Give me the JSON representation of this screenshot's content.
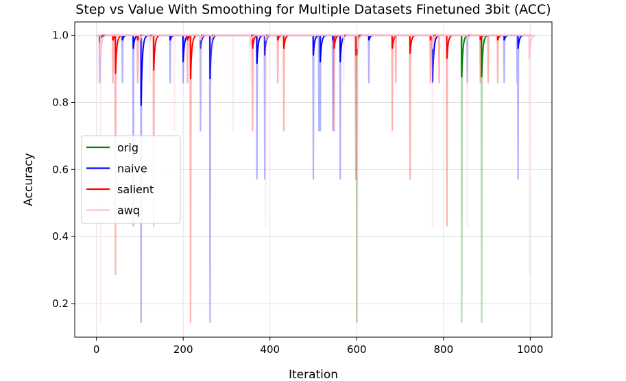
{
  "chart_data": {
    "type": "line",
    "title": "Step vs Value With Smoothing for Multiple Datasets Finetuned 3bit (ACC)",
    "xlabel": "Iteration",
    "ylabel": "Accuracy",
    "xlim": [
      -50,
      1050
    ],
    "ylim": [
      0.1,
      1.04
    ],
    "xticks": [
      0,
      200,
      400,
      600,
      800,
      1000
    ],
    "yticks": [
      0.2,
      0.4,
      0.6,
      0.8,
      1.0
    ],
    "grid": true,
    "legend_position": "center-left",
    "series": [
      {
        "name": "orig",
        "color": "#008000",
        "baseline": 1.0,
        "raw_dips": [
          {
            "x": 600,
            "y": 0.143
          },
          {
            "x": 842,
            "y": 0.143
          },
          {
            "x": 888,
            "y": 0.143
          }
        ],
        "smooth_dips": [
          {
            "x": 600,
            "y": 0.94
          },
          {
            "x": 842,
            "y": 0.875
          },
          {
            "x": 888,
            "y": 0.875
          }
        ]
      },
      {
        "name": "naive",
        "color": "#0000ff",
        "baseline": 1.0,
        "raw_dips": [
          {
            "x": 8,
            "y": 0.857
          },
          {
            "x": 60,
            "y": 0.857
          },
          {
            "x": 85,
            "y": 0.43
          },
          {
            "x": 103,
            "y": 0.143
          },
          {
            "x": 170,
            "y": 0.857
          },
          {
            "x": 200,
            "y": 0.857
          },
          {
            "x": 240,
            "y": 0.714
          },
          {
            "x": 262,
            "y": 0.143
          },
          {
            "x": 370,
            "y": 0.57
          },
          {
            "x": 388,
            "y": 0.57
          },
          {
            "x": 500,
            "y": 0.57
          },
          {
            "x": 513,
            "y": 0.714
          },
          {
            "x": 516,
            "y": 0.714
          },
          {
            "x": 545,
            "y": 0.714
          },
          {
            "x": 562,
            "y": 0.57
          },
          {
            "x": 628,
            "y": 0.857
          },
          {
            "x": 775,
            "y": 0.857
          },
          {
            "x": 855,
            "y": 0.857
          },
          {
            "x": 940,
            "y": 0.857
          },
          {
            "x": 970,
            "y": 0.857
          },
          {
            "x": 972,
            "y": 0.57
          }
        ],
        "smooth_dips": [
          {
            "x": 8,
            "y": 0.98
          },
          {
            "x": 60,
            "y": 0.985
          },
          {
            "x": 85,
            "y": 0.96
          },
          {
            "x": 103,
            "y": 0.79
          },
          {
            "x": 170,
            "y": 0.985
          },
          {
            "x": 200,
            "y": 0.92
          },
          {
            "x": 240,
            "y": 0.96
          },
          {
            "x": 262,
            "y": 0.87
          },
          {
            "x": 370,
            "y": 0.915
          },
          {
            "x": 388,
            "y": 0.94
          },
          {
            "x": 500,
            "y": 0.94
          },
          {
            "x": 516,
            "y": 0.92
          },
          {
            "x": 545,
            "y": 0.985
          },
          {
            "x": 562,
            "y": 0.92
          },
          {
            "x": 628,
            "y": 0.985
          },
          {
            "x": 775,
            "y": 0.86
          },
          {
            "x": 855,
            "y": 0.985
          },
          {
            "x": 940,
            "y": 0.985
          },
          {
            "x": 972,
            "y": 0.96
          }
        ]
      },
      {
        "name": "salient",
        "color": "#ff0000",
        "baseline": 1.0,
        "raw_dips": [
          {
            "x": 38,
            "y": 0.857
          },
          {
            "x": 44,
            "y": 0.286
          },
          {
            "x": 95,
            "y": 0.857
          },
          {
            "x": 132,
            "y": 0.43
          },
          {
            "x": 210,
            "y": 0.857
          },
          {
            "x": 217,
            "y": 0.143
          },
          {
            "x": 360,
            "y": 0.714
          },
          {
            "x": 418,
            "y": 0.857
          },
          {
            "x": 432,
            "y": 0.714
          },
          {
            "x": 548,
            "y": 0.714
          },
          {
            "x": 598,
            "y": 0.57
          },
          {
            "x": 682,
            "y": 0.714
          },
          {
            "x": 690,
            "y": 0.857
          },
          {
            "x": 723,
            "y": 0.57
          },
          {
            "x": 770,
            "y": 0.857
          },
          {
            "x": 790,
            "y": 0.857
          },
          {
            "x": 808,
            "y": 0.43
          },
          {
            "x": 885,
            "y": 0.857
          },
          {
            "x": 903,
            "y": 0.857
          },
          {
            "x": 925,
            "y": 0.857
          }
        ],
        "smooth_dips": [
          {
            "x": 38,
            "y": 0.985
          },
          {
            "x": 44,
            "y": 0.885
          },
          {
            "x": 95,
            "y": 0.985
          },
          {
            "x": 132,
            "y": 0.895
          },
          {
            "x": 210,
            "y": 0.985
          },
          {
            "x": 217,
            "y": 0.87
          },
          {
            "x": 360,
            "y": 0.96
          },
          {
            "x": 418,
            "y": 0.985
          },
          {
            "x": 432,
            "y": 0.96
          },
          {
            "x": 548,
            "y": 0.96
          },
          {
            "x": 598,
            "y": 0.94
          },
          {
            "x": 682,
            "y": 0.96
          },
          {
            "x": 723,
            "y": 0.945
          },
          {
            "x": 770,
            "y": 0.985
          },
          {
            "x": 808,
            "y": 0.93
          },
          {
            "x": 885,
            "y": 0.985
          },
          {
            "x": 925,
            "y": 0.985
          }
        ]
      },
      {
        "name": "awq",
        "color": "#ffc0cb",
        "baseline": 1.0,
        "raw_dips": [
          {
            "x": 3,
            "y": 0.857
          },
          {
            "x": 10,
            "y": 0.143
          },
          {
            "x": 100,
            "y": 0.857
          },
          {
            "x": 123,
            "y": 0.857
          },
          {
            "x": 180,
            "y": 0.714
          },
          {
            "x": 240,
            "y": 0.857
          },
          {
            "x": 265,
            "y": 0.857
          },
          {
            "x": 315,
            "y": 0.714
          },
          {
            "x": 355,
            "y": 0.857
          },
          {
            "x": 390,
            "y": 0.43
          },
          {
            "x": 570,
            "y": 0.857
          },
          {
            "x": 595,
            "y": 0.857
          },
          {
            "x": 602,
            "y": 0.143
          },
          {
            "x": 690,
            "y": 0.857
          },
          {
            "x": 775,
            "y": 0.43
          },
          {
            "x": 855,
            "y": 0.43
          },
          {
            "x": 998,
            "y": 0.286
          }
        ],
        "smooth_dips": [
          {
            "x": 10,
            "y": 0.94
          },
          {
            "x": 100,
            "y": 0.985
          },
          {
            "x": 123,
            "y": 0.985
          },
          {
            "x": 240,
            "y": 0.985
          },
          {
            "x": 265,
            "y": 0.985
          },
          {
            "x": 355,
            "y": 0.97
          },
          {
            "x": 390,
            "y": 0.985
          },
          {
            "x": 570,
            "y": 0.985
          },
          {
            "x": 602,
            "y": 0.96
          },
          {
            "x": 775,
            "y": 0.96
          },
          {
            "x": 855,
            "y": 0.985
          },
          {
            "x": 998,
            "y": 0.93
          }
        ]
      }
    ]
  }
}
